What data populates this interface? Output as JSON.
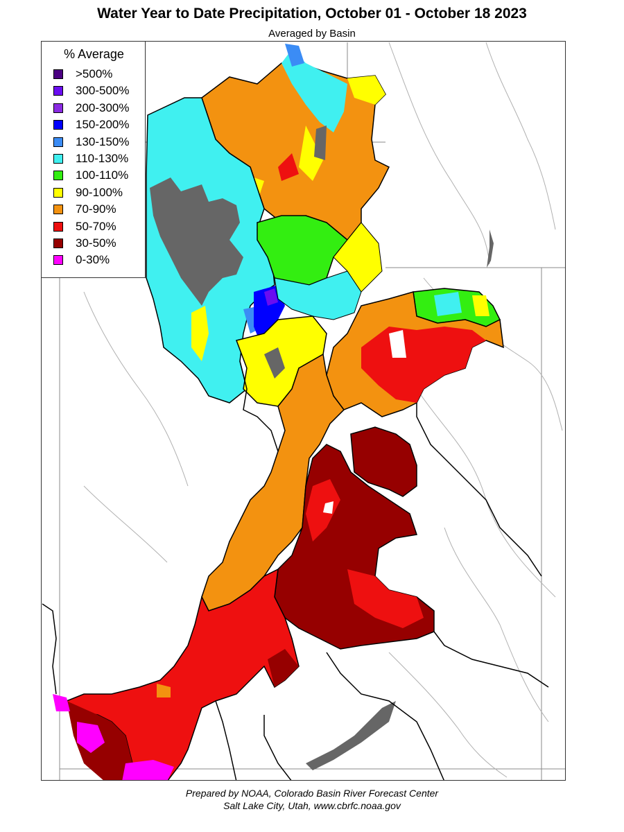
{
  "title": "Water Year to Date Precipitation, October 01  - October 18 2023",
  "subtitle": "Averaged by Basin",
  "legend": {
    "title": "% Average",
    "items": [
      {
        "label": ">500%",
        "color": "#4b0082"
      },
      {
        "label": "300-500%",
        "color": "#6a0df0"
      },
      {
        "label": "200-300%",
        "color": "#8a2be2"
      },
      {
        "label": "150-200%",
        "color": "#0000ff"
      },
      {
        "label": "130-150%",
        "color": "#3b8cf5"
      },
      {
        "label": "110-130%",
        "color": "#40f0f0"
      },
      {
        "label": "100-110%",
        "color": "#33ee11"
      },
      {
        "label": "90-100%",
        "color": "#ffff00"
      },
      {
        "label": "70-90%",
        "color": "#f39210"
      },
      {
        "label": "50-70%",
        "color": "#ee1010"
      },
      {
        "label": "30-50%",
        "color": "#960000"
      },
      {
        "label": "0-30%",
        "color": "#ff00ff"
      }
    ]
  },
  "colors": {
    "no_data": "#666666",
    "background": "#ffffff",
    "boundary": "#000000",
    "rivers": "#9a9a9a"
  },
  "footer": {
    "line1": "Prepared by NOAA, Colorado Basin River Forecast Center",
    "line2": "Salt Lake City, Utah, www.cbrfc.noaa.gov"
  }
}
